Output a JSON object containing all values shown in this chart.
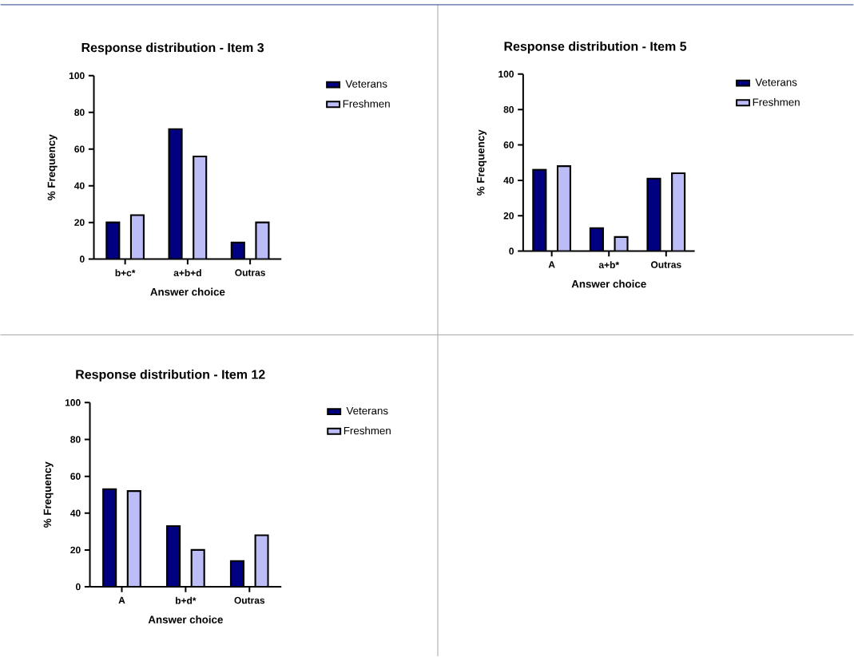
{
  "chart_data": [
    {
      "type": "bar",
      "title": "Response distribution - Item 3",
      "xlabel": "Answer choice",
      "ylabel": "% Frequency",
      "categories": [
        "b+c*",
        "a+b+d",
        "Outras"
      ],
      "ylim": [
        0,
        100
      ],
      "yticks": [
        0,
        20,
        40,
        60,
        80,
        100
      ],
      "grid": false,
      "legend": "right",
      "series": [
        {
          "name": "Veterans",
          "color": "#000080",
          "values": [
            20,
            71,
            9
          ]
        },
        {
          "name": "Freshmen",
          "color": "#bcbcf7",
          "values": [
            24,
            56,
            20
          ]
        }
      ]
    },
    {
      "type": "bar",
      "title": "Response distribution - Item 5",
      "xlabel": "Answer choice",
      "ylabel": "% Frequency",
      "categories": [
        "A",
        "a+b*",
        "Outras"
      ],
      "ylim": [
        0,
        100
      ],
      "yticks": [
        0,
        20,
        40,
        60,
        80,
        100
      ],
      "grid": false,
      "legend": "right",
      "series": [
        {
          "name": "Veterans",
          "color": "#000080",
          "values": [
            46,
            13,
            41
          ]
        },
        {
          "name": "Freshmen",
          "color": "#bcbcf7",
          "values": [
            48,
            8,
            44
          ]
        }
      ]
    },
    {
      "type": "bar",
      "title": "Response distribution - Item 12",
      "xlabel": "Answer choice",
      "ylabel": "% Frequency",
      "categories": [
        "A",
        "b+d*",
        "Outras"
      ],
      "ylim": [
        0,
        100
      ],
      "yticks": [
        0,
        20,
        40,
        60,
        80,
        100
      ],
      "grid": false,
      "legend": "right",
      "series": [
        {
          "name": "Veterans",
          "color": "#000080",
          "values": [
            53,
            33,
            14
          ]
        },
        {
          "name": "Freshmen",
          "color": "#bcbcf7",
          "values": [
            52,
            20,
            28
          ]
        }
      ]
    }
  ]
}
